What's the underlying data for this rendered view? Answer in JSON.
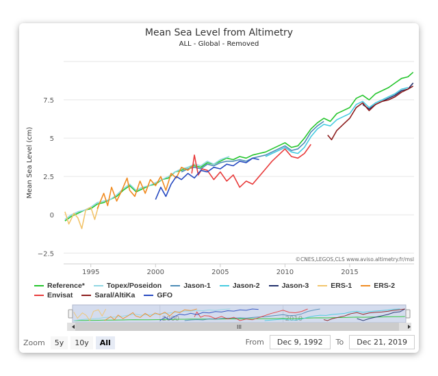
{
  "chart_data": {
    "type": "line",
    "title": "Mean Sea Level from Altimetry",
    "subtitle": "ALL - Global - Removed",
    "ylabel": "Mean Sea Level (cm)",
    "xlabel": "",
    "xlim": [
      1992.9,
      2019.97
    ],
    "ylim": [
      -3.2,
      10
    ],
    "yticks": [
      -2.5,
      0,
      2.5,
      5,
      7.5
    ],
    "ytick_labels": [
      "−2.5",
      "0",
      "2.5",
      "5",
      "7.5"
    ],
    "xticks": [
      1995,
      2000,
      2005,
      2010,
      2015
    ],
    "xtick_labels": [
      "1995",
      "2000",
      "2005",
      "2010",
      "2015"
    ],
    "grid": true,
    "legend_position": "bottom",
    "credits": "©CNES,LEGOS,CLS www.aviso.altimetry.fr/msl",
    "series": [
      {
        "name": "Reference*",
        "color": "#22c42a",
        "points": [
          [
            1993,
            -0.4
          ],
          [
            1993.5,
            -0.1
          ],
          [
            1994,
            0.1
          ],
          [
            1994.5,
            0.3
          ],
          [
            1995,
            0.4
          ],
          [
            1995.5,
            0.7
          ],
          [
            1996,
            0.8
          ],
          [
            1996.5,
            1.0
          ],
          [
            1997,
            1.2
          ],
          [
            1997.5,
            1.6
          ],
          [
            1998,
            1.9
          ],
          [
            1998.5,
            1.5
          ],
          [
            1999,
            1.7
          ],
          [
            1999.5,
            1.9
          ],
          [
            2000,
            2.0
          ],
          [
            2000.5,
            2.3
          ],
          [
            2001,
            2.4
          ],
          [
            2001.5,
            2.8
          ],
          [
            2002,
            2.9
          ],
          [
            2002.5,
            3.1
          ],
          [
            2003,
            3.2
          ],
          [
            2003.5,
            3.1
          ],
          [
            2004,
            3.4
          ],
          [
            2004.5,
            3.3
          ],
          [
            2005,
            3.5
          ],
          [
            2005.5,
            3.7
          ],
          [
            2006,
            3.6
          ],
          [
            2006.5,
            3.8
          ],
          [
            2007,
            3.7
          ],
          [
            2007.5,
            3.9
          ],
          [
            2008,
            4.0
          ],
          [
            2008.5,
            4.1
          ],
          [
            2009,
            4.3
          ],
          [
            2009.5,
            4.5
          ],
          [
            2010,
            4.7
          ],
          [
            2010.5,
            4.4
          ],
          [
            2011,
            4.5
          ],
          [
            2011.5,
            5.0
          ],
          [
            2012,
            5.6
          ],
          [
            2012.5,
            6.0
          ],
          [
            2013,
            6.3
          ],
          [
            2013.5,
            6.1
          ],
          [
            2014,
            6.6
          ],
          [
            2014.5,
            6.8
          ],
          [
            2015,
            7.0
          ],
          [
            2015.5,
            7.6
          ],
          [
            2016,
            7.8
          ],
          [
            2016.5,
            7.5
          ],
          [
            2017,
            7.9
          ],
          [
            2017.5,
            8.1
          ],
          [
            2018,
            8.3
          ],
          [
            2018.5,
            8.6
          ],
          [
            2019,
            8.9
          ],
          [
            2019.5,
            9.0
          ],
          [
            2019.9,
            9.3
          ]
        ]
      },
      {
        "name": "Topex/Poseidon",
        "color": "#8fd6e3",
        "points": [
          [
            1993,
            -0.3
          ],
          [
            1993.5,
            0.0
          ],
          [
            1994,
            0.2
          ],
          [
            1994.5,
            0.3
          ],
          [
            1995,
            0.5
          ],
          [
            1995.5,
            0.8
          ],
          [
            1996,
            0.9
          ],
          [
            1996.5,
            1.0
          ],
          [
            1997,
            1.3
          ],
          [
            1997.5,
            1.7
          ],
          [
            1998,
            2.0
          ],
          [
            1998.5,
            1.6
          ],
          [
            1999,
            1.8
          ],
          [
            1999.5,
            1.9
          ],
          [
            2000,
            2.1
          ],
          [
            2000.5,
            2.3
          ],
          [
            2001,
            2.5
          ],
          [
            2001.5,
            2.8
          ],
          [
            2002,
            3.0
          ],
          [
            2002.5,
            3.1
          ],
          [
            2003,
            3.3
          ],
          [
            2003.5,
            3.2
          ],
          [
            2004,
            3.5
          ],
          [
            2004.5,
            3.3
          ],
          [
            2005,
            3.6
          ],
          [
            2005.7,
            3.8
          ]
        ]
      },
      {
        "name": "Jason-1",
        "color": "#4a8ab5",
        "points": [
          [
            2002,
            2.8
          ],
          [
            2002.5,
            3.0
          ],
          [
            2003,
            3.1
          ],
          [
            2003.5,
            3.0
          ],
          [
            2004,
            3.3
          ],
          [
            2004.5,
            3.2
          ],
          [
            2005,
            3.4
          ],
          [
            2005.5,
            3.5
          ],
          [
            2006,
            3.5
          ],
          [
            2006.5,
            3.6
          ],
          [
            2007,
            3.5
          ],
          [
            2007.5,
            3.7
          ],
          [
            2008,
            3.8
          ],
          [
            2008.5,
            3.9
          ],
          [
            2009,
            4.1
          ],
          [
            2009.5,
            4.3
          ],
          [
            2010,
            4.5
          ],
          [
            2010.5,
            4.2
          ],
          [
            2011,
            4.3
          ],
          [
            2011.5,
            4.7
          ],
          [
            2012,
            5.4
          ],
          [
            2012.5,
            5.8
          ],
          [
            2013,
            6.1
          ]
        ]
      },
      {
        "name": "Jason-2",
        "color": "#45cbe0",
        "points": [
          [
            2008.5,
            3.8
          ],
          [
            2009,
            4.0
          ],
          [
            2009.5,
            4.2
          ],
          [
            2010,
            4.4
          ],
          [
            2010.5,
            4.1
          ],
          [
            2011,
            4.0
          ],
          [
            2011.5,
            4.4
          ],
          [
            2012,
            5.1
          ],
          [
            2012.5,
            5.6
          ],
          [
            2013,
            5.9
          ],
          [
            2013.5,
            5.8
          ],
          [
            2014,
            6.2
          ],
          [
            2014.5,
            6.4
          ],
          [
            2015,
            6.6
          ],
          [
            2015.5,
            7.2
          ],
          [
            2016,
            7.4
          ],
          [
            2016.5,
            7.0
          ],
          [
            2017,
            7.3
          ],
          [
            2017.5,
            7.5
          ],
          [
            2018,
            7.7
          ],
          [
            2018.5,
            7.9
          ],
          [
            2019,
            8.2
          ],
          [
            2019.5,
            8.3
          ]
        ]
      },
      {
        "name": "Jason-3",
        "color": "#1f2f6b",
        "points": [
          [
            2016,
            7.2
          ],
          [
            2016.5,
            6.9
          ],
          [
            2017,
            7.2
          ],
          [
            2017.5,
            7.4
          ],
          [
            2018,
            7.6
          ],
          [
            2018.5,
            7.8
          ],
          [
            2019,
            8.1
          ],
          [
            2019.5,
            8.2
          ],
          [
            2019.9,
            8.6
          ]
        ]
      },
      {
        "name": "ERS-1",
        "color": "#f2c46b",
        "points": [
          [
            1993,
            0.2
          ],
          [
            1993.3,
            -0.6
          ],
          [
            1993.7,
            0.1
          ],
          [
            1994,
            -0.2
          ],
          [
            1994.3,
            -0.9
          ],
          [
            1994.6,
            0.3
          ],
          [
            1995,
            0.5
          ],
          [
            1995.3,
            -0.3
          ],
          [
            1995.6,
            0.6
          ]
        ]
      },
      {
        "name": "ERS-2",
        "color": "#f08a20",
        "points": [
          [
            1995.5,
            0.4
          ],
          [
            1996,
            1.4
          ],
          [
            1996.3,
            0.6
          ],
          [
            1996.6,
            1.8
          ],
          [
            1997,
            0.9
          ],
          [
            1997.4,
            1.6
          ],
          [
            1997.8,
            2.4
          ],
          [
            1998,
            1.6
          ],
          [
            1998.4,
            1.2
          ],
          [
            1998.8,
            2.2
          ],
          [
            1999.2,
            1.4
          ],
          [
            1999.6,
            2.3
          ],
          [
            2000,
            1.9
          ],
          [
            2000.4,
            2.5
          ],
          [
            2000.8,
            1.6
          ],
          [
            2001.2,
            2.7
          ],
          [
            2001.6,
            2.4
          ],
          [
            2002,
            3.1
          ],
          [
            2002.5,
            2.9
          ],
          [
            2003,
            3.3
          ]
        ]
      },
      {
        "name": "Envisat",
        "color": "#e83a3a",
        "points": [
          [
            2002.8,
            2.7
          ],
          [
            2003,
            3.9
          ],
          [
            2003.3,
            2.6
          ],
          [
            2003.6,
            3.0
          ],
          [
            2004,
            2.9
          ],
          [
            2004.5,
            2.3
          ],
          [
            2005,
            2.8
          ],
          [
            2005.5,
            2.2
          ],
          [
            2006,
            2.6
          ],
          [
            2006.5,
            1.8
          ],
          [
            2007,
            2.2
          ],
          [
            2007.5,
            2.0
          ],
          [
            2008,
            2.5
          ],
          [
            2008.5,
            3.0
          ],
          [
            2009,
            3.5
          ],
          [
            2009.5,
            3.9
          ],
          [
            2010,
            4.3
          ],
          [
            2010.5,
            3.8
          ],
          [
            2011,
            3.7
          ],
          [
            2011.5,
            4.0
          ],
          [
            2012,
            4.6
          ]
        ]
      },
      {
        "name": "Saral/AltiKa",
        "color": "#8b1a1a",
        "points": [
          [
            2013.3,
            5.2
          ],
          [
            2013.6,
            4.9
          ],
          [
            2014,
            5.5
          ],
          [
            2014.5,
            5.9
          ],
          [
            2015,
            6.3
          ],
          [
            2015.5,
            7.0
          ],
          [
            2016,
            7.3
          ],
          [
            2016.5,
            6.8
          ],
          [
            2017,
            7.2
          ],
          [
            2017.5,
            7.4
          ],
          [
            2018,
            7.5
          ],
          [
            2018.5,
            7.7
          ],
          [
            2019,
            8.0
          ],
          [
            2019.5,
            8.2
          ],
          [
            2019.9,
            8.4
          ]
        ]
      },
      {
        "name": "GFO",
        "color": "#2548c0",
        "points": [
          [
            2000,
            1.0
          ],
          [
            2000.4,
            1.8
          ],
          [
            2000.8,
            1.2
          ],
          [
            2001.2,
            2.0
          ],
          [
            2001.6,
            2.5
          ],
          [
            2002,
            2.3
          ],
          [
            2002.5,
            2.7
          ],
          [
            2003,
            2.4
          ],
          [
            2003.5,
            2.9
          ],
          [
            2004,
            2.8
          ],
          [
            2004.5,
            3.1
          ],
          [
            2005,
            3.0
          ],
          [
            2005.5,
            3.3
          ],
          [
            2006,
            3.2
          ],
          [
            2006.5,
            3.5
          ],
          [
            2007,
            3.4
          ],
          [
            2007.5,
            3.7
          ],
          [
            2008,
            3.6
          ]
        ]
      }
    ]
  },
  "navigator": {
    "xtick_labels": [
      "2000",
      "2010"
    ],
    "xticks": [
      2000,
      2010
    ],
    "scroll_grip": "III"
  },
  "controls": {
    "zoom_label": "Zoom",
    "zoom_buttons": [
      "5y",
      "10y",
      "All"
    ],
    "zoom_selected": "All",
    "from_label": "From",
    "from_value": "Dec 9, 1992",
    "to_label": "To",
    "to_value": "Dec 21, 2019"
  }
}
